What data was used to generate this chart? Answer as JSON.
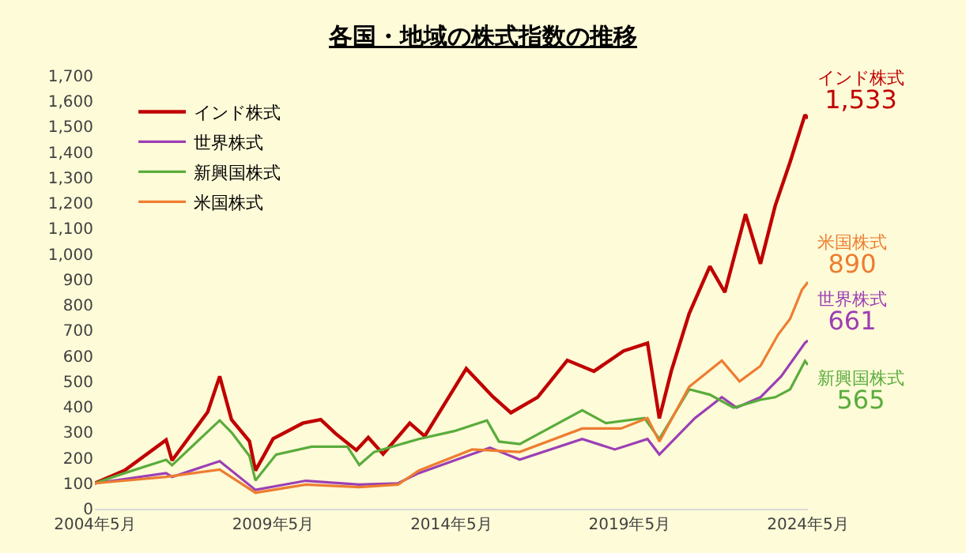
{
  "chart_data": {
    "type": "line",
    "title": "各国・地域の株式指数の推移",
    "xlim": [
      "2004-05",
      "2024-05"
    ],
    "xticks": [
      {
        "value": "2004-05",
        "label": "2004年5月"
      },
      {
        "value": "2009-05",
        "label": "2009年5月"
      },
      {
        "value": "2014-05",
        "label": "2014年5月"
      },
      {
        "value": "2019-05",
        "label": "2019年5月"
      },
      {
        "value": "2024-05",
        "label": "2024年5月"
      }
    ],
    "ylim": [
      0,
      1700
    ],
    "yticks": [
      {
        "value": 0,
        "label": "0"
      },
      {
        "value": 100,
        "label": "100"
      },
      {
        "value": 200,
        "label": "200"
      },
      {
        "value": 300,
        "label": "300"
      },
      {
        "value": 400,
        "label": "400"
      },
      {
        "value": 500,
        "label": "500"
      },
      {
        "value": 600,
        "label": "600"
      },
      {
        "value": 700,
        "label": "700"
      },
      {
        "value": 800,
        "label": "800"
      },
      {
        "value": 900,
        "label": "900"
      },
      {
        "value": 1000,
        "label": "1,000"
      },
      {
        "value": 1100,
        "label": "1,100"
      },
      {
        "value": 1200,
        "label": "1,200"
      },
      {
        "value": 1300,
        "label": "1,300"
      },
      {
        "value": 1400,
        "label": "1,400"
      },
      {
        "value": 1500,
        "label": "1,500"
      },
      {
        "value": 1600,
        "label": "1,600"
      },
      {
        "value": 1700,
        "label": "1,700"
      }
    ],
    "grid": false,
    "legend": "top left",
    "marker": "none",
    "line_style": "solid",
    "series": [
      {
        "name": "インド株式",
        "color": "#c00000",
        "x": [
          "2004-05",
          "2005-03",
          "2006-05",
          "2006-07",
          "2007-07",
          "2007-11",
          "2008-03",
          "2008-09",
          "2008-11",
          "2009-02",
          "2009-05",
          "2010-03",
          "2010-09",
          "2011-02",
          "2011-09",
          "2012-01",
          "2012-06",
          "2013-03",
          "2013-08",
          "2014-10",
          "2015-07",
          "2016-01",
          "2016-10",
          "2017-08",
          "2018-05",
          "2019-03",
          "2019-11",
          "2020-03",
          "2020-07",
          "2021-01",
          "2021-08",
          "2022-01",
          "2022-08",
          "2023-01",
          "2023-06",
          "2023-11",
          "2024-04",
          "2024-05"
        ],
        "values": [
          100,
          150,
          270,
          190,
          380,
          520,
          350,
          265,
          150,
          213,
          275,
          336,
          350,
          295,
          230,
          280,
          215,
          336,
          285,
          550,
          440,
          377,
          438,
          583,
          540,
          620,
          650,
          355,
          540,
          767,
          952,
          850,
          1157,
          962,
          1190,
          1362,
          1547,
          1533
        ]
      },
      {
        "name": "世界株式",
        "color": "#9b3fb5",
        "x": [
          "2004-05",
          "2006-05",
          "2006-07",
          "2007-11",
          "2008-11",
          "2010-04",
          "2011-10",
          "2012-11",
          "2013-06",
          "2014-12",
          "2015-06",
          "2016-04",
          "2018-01",
          "2018-12",
          "2019-11",
          "2020-03",
          "2021-03",
          "2021-12",
          "2022-05",
          "2023-01",
          "2023-08",
          "2024-04",
          "2024-05"
        ],
        "values": [
          100,
          140,
          125,
          187,
          74,
          110,
          95,
          100,
          140,
          215,
          240,
          193,
          274,
          233,
          274,
          213,
          356,
          438,
          397,
          438,
          520,
          651,
          661
        ]
      },
      {
        "name": "新興国株式",
        "color": "#5aac3c",
        "x": [
          "2004-05",
          "2005-03",
          "2006-05",
          "2006-07",
          "2007-11",
          "2008-03",
          "2008-09",
          "2008-11",
          "2009-06",
          "2010-06",
          "2011-06",
          "2011-10",
          "2012-03",
          "2013-06",
          "2014-06",
          "2015-05",
          "2015-09",
          "2016-04",
          "2018-01",
          "2018-09",
          "2019-10",
          "2020-03",
          "2021-01",
          "2021-08",
          "2022-04",
          "2023-01",
          "2023-06",
          "2023-11",
          "2024-04",
          "2024-05"
        ],
        "values": [
          100,
          140,
          192,
          171,
          347,
          300,
          207,
          111,
          213,
          244,
          244,
          172,
          223,
          274,
          305,
          347,
          264,
          254,
          387,
          336,
          356,
          274,
          469,
          448,
          397,
          428,
          438,
          469,
          580,
          565
        ]
      },
      {
        "name": "米国株式",
        "color": "#ed7d31",
        "x": [
          "2004-05",
          "2006-05",
          "2007-11",
          "2008-11",
          "2010-04",
          "2011-10",
          "2012-11",
          "2013-06",
          "2014-12",
          "2016-04",
          "2018-01",
          "2019-02",
          "2019-11",
          "2020-03",
          "2021-01",
          "2021-12",
          "2022-06",
          "2023-01",
          "2023-07",
          "2023-11",
          "2024-03",
          "2024-05"
        ],
        "values": [
          100,
          125,
          154,
          63,
          95,
          85,
          95,
          150,
          233,
          223,
          315,
          315,
          356,
          264,
          479,
          582,
          500,
          561,
          684,
          746,
          860,
          890
        ]
      }
    ],
    "annotations": [
      {
        "text": "インド株式\n1,533",
        "x": "2024-05",
        "y": 1533
      },
      {
        "text": "世界株式\n661",
        "x": "2024-05",
        "y": 661
      },
      {
        "text": "新興国株式\n565",
        "x": "2024-05",
        "y": 565
      },
      {
        "text": "米国株式\n890",
        "x": "2024-05",
        "y": 890
      }
    ]
  }
}
